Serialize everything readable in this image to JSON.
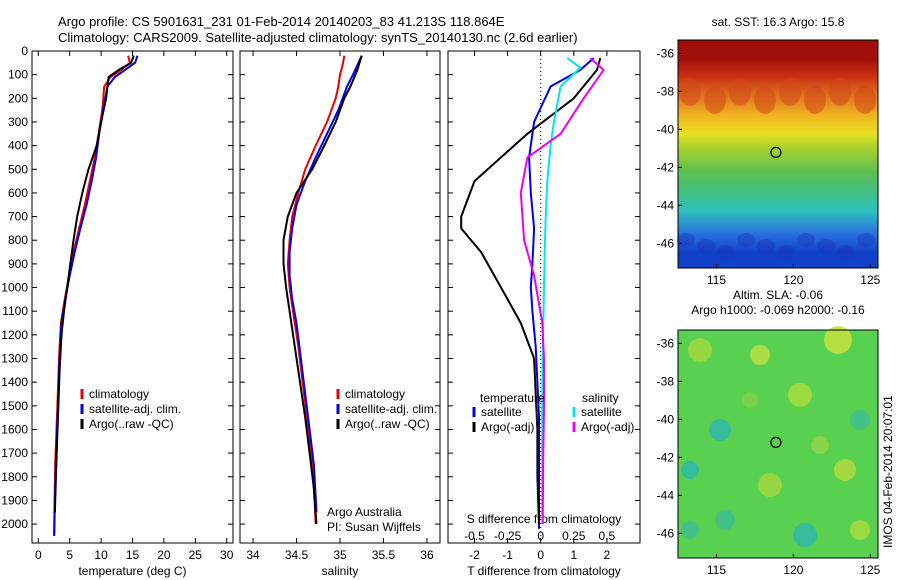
{
  "figure": {
    "title_line1": "Argo profile: CS 5901631_231 01-Feb-2014 20140203_83 41.213S 118.864E",
    "title_line2": "Climatology: CARS2009. Satellite-adjusted climatology: synTS_20140130.nc (2.6d earlier)",
    "side_stamp": "IMOS 04-Feb-2014 20:07:01",
    "credit_line1": "Argo Australia",
    "credit_line2": "PI: Susan Wijffels"
  },
  "colors": {
    "climatology": "#ee0000",
    "satellite": "#0000ee",
    "argo": "#000000",
    "cyan": "#00e5ee",
    "magenta": "#ee00ee"
  },
  "chart_data": [
    {
      "type": "line",
      "id": "temperature",
      "xlabel": "temperature (deg C)",
      "ylabel": "",
      "xlim": [
        -1,
        31
      ],
      "ylim": [
        2080,
        0
      ],
      "y_inverted": true,
      "xticks": [
        0,
        5,
        10,
        15,
        20,
        25,
        30
      ],
      "xtick_labels": [
        "0",
        "5",
        "10",
        "15",
        "20",
        "25",
        "30"
      ],
      "yticks": [
        0,
        100,
        200,
        300,
        400,
        500,
        600,
        700,
        800,
        900,
        1000,
        1100,
        1200,
        1300,
        1400,
        1500,
        1600,
        1700,
        1800,
        1900,
        2000
      ],
      "ytick_labels": [
        "0",
        "100",
        "200",
        "300",
        "400",
        "500",
        "600",
        "700",
        "800",
        "900",
        "1000",
        "1100",
        "1200",
        "1300",
        "1400",
        "1500",
        "1600",
        "1700",
        "1800",
        "1900",
        "2000"
      ],
      "legend": [
        "climatology",
        "satellite-adj. clim.",
        "Argo(..raw -QC)"
      ],
      "legend_position": "lower-middle",
      "series": [
        {
          "name": "climatology",
          "color": "#ee0000",
          "x": [
            14.3,
            14.6,
            13.2,
            11.5,
            10.5,
            10.2,
            9.6,
            9.0,
            8.2,
            7.4,
            6.5,
            5.6,
            4.9,
            4.2,
            3.6,
            3.3,
            3.1,
            2.9,
            2.7,
            2.6,
            2.5
          ],
          "y": [
            20,
            50,
            80,
            110,
            150,
            250,
            350,
            450,
            550,
            650,
            750,
            850,
            950,
            1050,
            1150,
            1300,
            1450,
            1600,
            1750,
            1900,
            2050
          ]
        },
        {
          "name": "satellite-adj. clim.",
          "color": "#0000ee",
          "x": [
            15.8,
            15.4,
            13.8,
            12.2,
            11.0,
            10.3,
            9.7,
            9.2,
            8.5,
            7.7,
            6.7,
            5.8,
            5.0,
            4.3,
            3.7,
            3.4,
            3.2,
            3.0,
            2.8,
            2.65,
            2.55
          ],
          "y": [
            20,
            50,
            80,
            110,
            150,
            250,
            350,
            450,
            550,
            650,
            750,
            850,
            950,
            1050,
            1150,
            1300,
            1450,
            1600,
            1750,
            1900,
            2050
          ]
        },
        {
          "name": "Argo(..raw -QC)",
          "color": "#000000",
          "x": [
            15.2,
            14.8,
            12.8,
            11.2,
            10.8,
            10.0,
            9.3,
            8.0,
            7.0,
            6.2,
            5.6,
            5.1,
            4.6,
            4.1,
            3.7,
            3.4,
            3.2,
            3.0,
            2.8,
            2.65
          ],
          "y": [
            20,
            50,
            80,
            110,
            200,
            300,
            400,
            500,
            600,
            700,
            800,
            900,
            1000,
            1100,
            1200,
            1350,
            1500,
            1650,
            1800,
            1950
          ]
        }
      ]
    },
    {
      "type": "line",
      "id": "salinity",
      "xlabel": "salinity",
      "ylabel": "",
      "xlim": [
        33.85,
        36.15
      ],
      "ylim": [
        2080,
        0
      ],
      "y_inverted": true,
      "xticks": [
        34,
        34.5,
        35,
        35.5,
        36
      ],
      "xtick_labels": [
        "34",
        "34.5",
        "35",
        "35.5",
        "36"
      ],
      "legend": [
        "climatology",
        "satellite-adj. clim.",
        "Argo(..raw -QC)"
      ],
      "legend_position": "lower-right",
      "series": [
        {
          "name": "climatology",
          "color": "#ee0000",
          "x": [
            35.05,
            35.03,
            35.0,
            34.98,
            34.95,
            34.85,
            34.72,
            34.6,
            34.52,
            34.45,
            34.42,
            34.4,
            34.42,
            34.46,
            34.52,
            34.57,
            34.62,
            34.67,
            34.7,
            34.72
          ],
          "y": [
            20,
            60,
            100,
            150,
            200,
            300,
            400,
            500,
            600,
            700,
            800,
            900,
            1000,
            1100,
            1250,
            1400,
            1550,
            1700,
            1850,
            2000
          ]
        },
        {
          "name": "satellite-adj. clim.",
          "color": "#0000ee",
          "x": [
            35.25,
            35.2,
            35.15,
            35.08,
            34.98,
            34.85,
            34.72,
            34.6,
            34.5,
            34.45,
            34.42,
            34.42,
            34.45,
            34.5,
            34.55,
            34.6,
            34.65,
            34.7,
            34.73
          ],
          "y": [
            20,
            60,
            100,
            150,
            250,
            350,
            450,
            550,
            650,
            750,
            850,
            950,
            1050,
            1150,
            1300,
            1450,
            1600,
            1750,
            1950
          ]
        },
        {
          "name": "Argo(..raw -QC)",
          "color": "#000000",
          "x": [
            35.25,
            35.2,
            35.12,
            35.05,
            34.95,
            34.82,
            34.68,
            34.5,
            34.4,
            34.35,
            34.35,
            34.38,
            34.42,
            34.48,
            34.54,
            34.6,
            34.65,
            34.7,
            34.73
          ],
          "y": [
            20,
            80,
            150,
            200,
            300,
            400,
            500,
            600,
            700,
            800,
            900,
            1000,
            1100,
            1250,
            1400,
            1550,
            1700,
            1850,
            2000
          ]
        }
      ]
    },
    {
      "type": "line",
      "id": "difference",
      "xlabel": "T difference from climatology",
      "top_label": "S difference from climatology",
      "xlim": [
        -2.8,
        3.0
      ],
      "ylim": [
        2080,
        0
      ],
      "y_inverted": true,
      "xticks": [
        -2,
        -1,
        0,
        1,
        2
      ],
      "xtick_labels": [
        "-2",
        "-1",
        "0",
        "1",
        "2"
      ],
      "top_ticks": [
        -0.5,
        -0.25,
        0,
        0.25,
        0.5
      ],
      "top_tick_labels": [
        "-0.5",
        "-0.25",
        "0",
        "0.25",
        "0.5"
      ],
      "legend_temperature_title": "temperature",
      "legend_salinity_title": "salinity",
      "legend": [
        "satellite",
        "Argo(-adj)",
        "satellite",
        "Argo(-adj)"
      ],
      "series": [
        {
          "name": "satellite",
          "group": "temperature",
          "color": "#0000ee",
          "x": [
            1.6,
            1.2,
            0.3,
            -0.2,
            -0.35,
            -0.3,
            -0.2,
            -0.25,
            -0.3,
            -0.25,
            -0.15,
            -0.1,
            -0.05,
            -0.05,
            -0.05,
            -0.05,
            -0.05,
            -0.05
          ],
          "y": [
            30,
            80,
            150,
            300,
            450,
            600,
            750,
            900,
            1000,
            1100,
            1250,
            1400,
            1550,
            1700,
            1850,
            1950,
            2000,
            2020
          ]
        },
        {
          "name": "Argo(-adj)",
          "group": "temperature",
          "color": "#000000",
          "x": [
            1.8,
            1.7,
            1.0,
            -0.4,
            -1.2,
            -2.0,
            -2.4,
            -2.4,
            -1.8,
            -1.2,
            -0.6,
            -0.2,
            -0.15,
            -0.1,
            -0.1,
            -0.05
          ],
          "y": [
            30,
            80,
            200,
            350,
            450,
            550,
            700,
            750,
            850,
            1000,
            1150,
            1300,
            1450,
            1600,
            1800,
            2000
          ]
        },
        {
          "name": "satellite",
          "group": "salinity",
          "color": "#00e5ee",
          "x": [
            0.8,
            1.2,
            0.6,
            0.4,
            0.3,
            0.2,
            0.15,
            0.12,
            0.1,
            0.08,
            0.06,
            0.05,
            0.05,
            0.05
          ],
          "y": [
            30,
            70,
            150,
            300,
            400,
            550,
            700,
            850,
            1000,
            1150,
            1300,
            1500,
            1700,
            2000
          ]
        },
        {
          "name": "Argo(-adj)",
          "group": "salinity",
          "color": "#ee00ee",
          "x": [
            1.5,
            1.9,
            1.3,
            0.6,
            -0.4,
            -0.6,
            -0.5,
            -0.2,
            0.05,
            0.1,
            0.1,
            0.08,
            0.06
          ],
          "y": [
            30,
            80,
            200,
            350,
            450,
            600,
            800,
            950,
            1150,
            1300,
            1500,
            1700,
            2000
          ]
        }
      ]
    },
    {
      "type": "heatmap",
      "id": "sst_map",
      "title": "sat. SST: 16.3 Argo: 15.8",
      "xlim": [
        112.5,
        125.5
      ],
      "ylim": [
        -47.3,
        -35.3
      ],
      "xticks": [
        115,
        120,
        125
      ],
      "xtick_labels": [
        "115",
        "120",
        "125"
      ],
      "yticks": [
        -36,
        -38,
        -40,
        -42,
        -44,
        -46
      ],
      "ytick_labels": [
        "-36",
        "-38",
        "-40",
        "-42",
        "-44",
        "-46"
      ],
      "marker": {
        "lon": 118.864,
        "lat": -41.213
      },
      "colormap": "jet",
      "color_stops": [
        [
          -46.5,
          "#1040c8"
        ],
        [
          -45.5,
          "#2a70e0"
        ],
        [
          -44.3,
          "#30c0c0"
        ],
        [
          -43.3,
          "#40c080"
        ],
        [
          -42.2,
          "#60c050"
        ],
        [
          -41.1,
          "#a0d030"
        ],
        [
          -40.2,
          "#e8e020"
        ],
        [
          -39.2,
          "#f0b020"
        ],
        [
          -38.2,
          "#e07020"
        ],
        [
          -37.2,
          "#c83010"
        ],
        [
          -36.3,
          "#a01008"
        ]
      ]
    },
    {
      "type": "heatmap",
      "id": "sla_map",
      "title_line1": "Altim. SLA: -0.06",
      "title_line2": "Argo h1000: -0.069 h2000: -0.16",
      "xlim": [
        112.5,
        125.5
      ],
      "ylim": [
        -47.3,
        -35.3
      ],
      "xticks": [
        115,
        120,
        125
      ],
      "xtick_labels": [
        "115",
        "120",
        "125"
      ],
      "yticks": [
        -36,
        -38,
        -40,
        -42,
        -44,
        -46
      ],
      "ytick_labels": [
        "-36",
        "-38",
        "-40",
        "-42",
        "-44",
        "-46"
      ],
      "marker": {
        "lon": 118.864,
        "lat": -41.213
      },
      "colormap": "jet",
      "background_color": "#58d050"
    }
  ]
}
